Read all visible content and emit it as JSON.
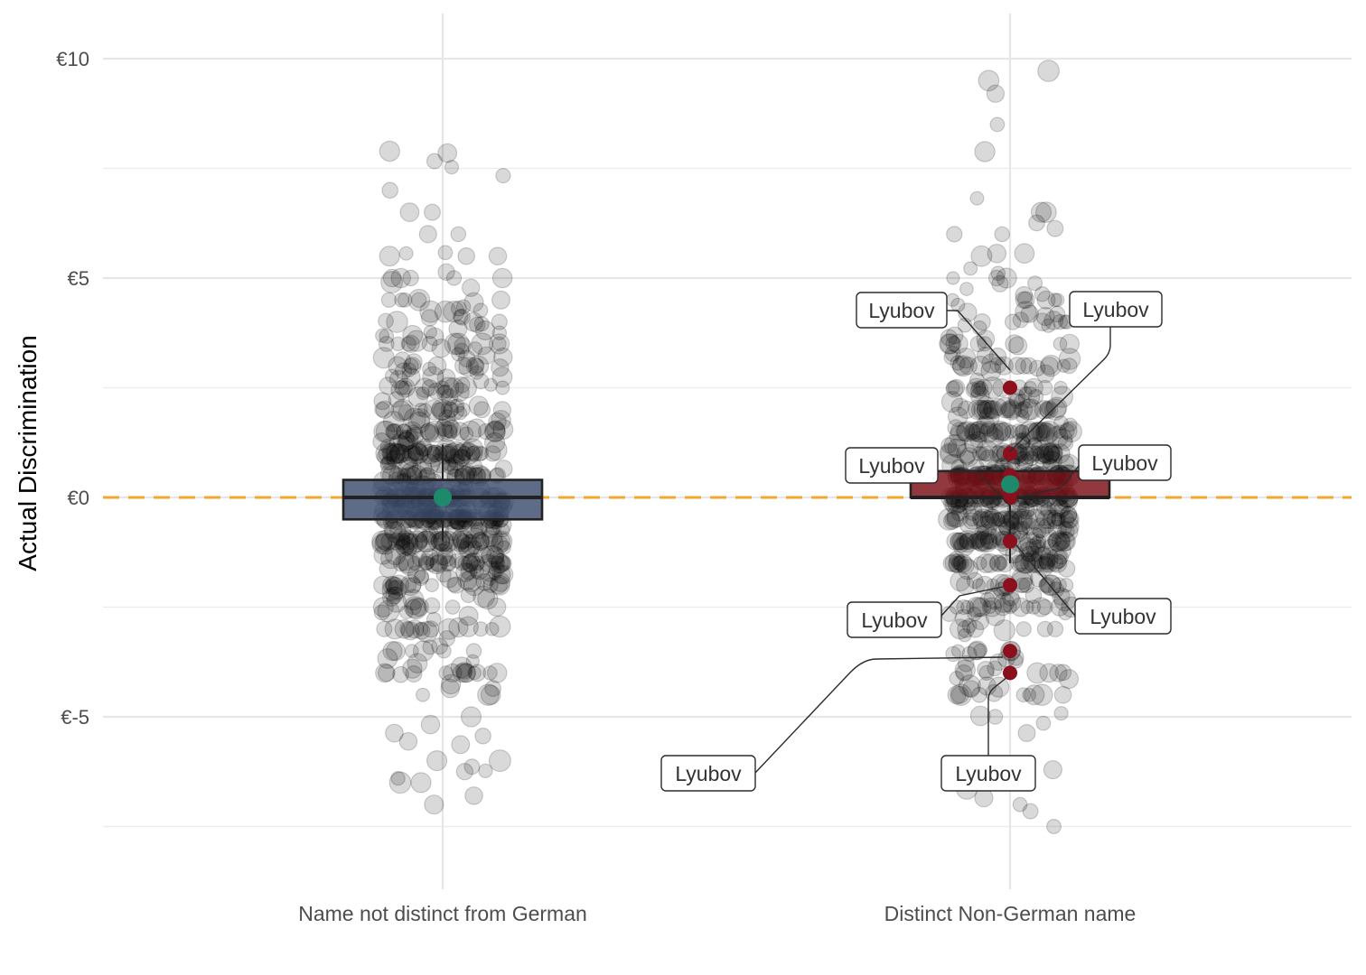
{
  "chart_data": {
    "type": "scatter",
    "subtype": "jittered points with boxplots",
    "ylabel": "Actual Discrimination",
    "xlabel": "",
    "categories": [
      "Name not distinct from German",
      "Distinct Non-German name"
    ],
    "ylim": [
      -8.6,
      10.9
    ],
    "yticks": [
      {
        "value": 10,
        "label": "€10"
      },
      {
        "value": 5,
        "label": "€5"
      },
      {
        "value": 0,
        "label": "€0"
      },
      {
        "value": -5,
        "label": "€-5"
      }
    ],
    "grid": true,
    "reference_line": {
      "value": 0,
      "style": "dashed",
      "color": "#f0a92e"
    },
    "colors": {
      "points": "#000000",
      "box_not_distinct": "#3b4c6e",
      "box_distinct": "#7a0e16",
      "mean_marker": "#1f8a6b",
      "highlight": "#8b0f1c",
      "grid": "#e6e6e6"
    },
    "boxplots": [
      {
        "category": "Name not distinct from German",
        "q1": -0.5,
        "median": 0.0,
        "q3": 0.4,
        "whisker_low": -1.0,
        "whisker_high": 1.2,
        "mean": 0.0
      },
      {
        "category": "Distinct Non-German name",
        "q1": 0.0,
        "median": 0.0,
        "q3": 0.6,
        "whisker_low": -1.5,
        "whisker_high": 0.6,
        "mean": 0.3
      }
    ],
    "highlighted_points": [
      {
        "category": "Distinct Non-German name",
        "y": 2.5,
        "label": "Lyubov"
      },
      {
        "category": "Distinct Non-German name",
        "y": 1.0,
        "label": "Lyubov"
      },
      {
        "category": "Distinct Non-German name",
        "y": 0.5,
        "label": "Lyubov"
      },
      {
        "category": "Distinct Non-German name",
        "y": 0.0,
        "label": "Lyubov"
      },
      {
        "category": "Distinct Non-German name",
        "y": -1.0,
        "label": "Lyubov"
      },
      {
        "category": "Distinct Non-German name",
        "y": -2.0,
        "label": "Lyubov"
      },
      {
        "category": "Distinct Non-German name",
        "y": -3.5,
        "label": "Lyubov"
      },
      {
        "category": "Distinct Non-German name",
        "y": -4.0,
        "label": "Lyubov"
      }
    ],
    "points_per_group": 650
  }
}
